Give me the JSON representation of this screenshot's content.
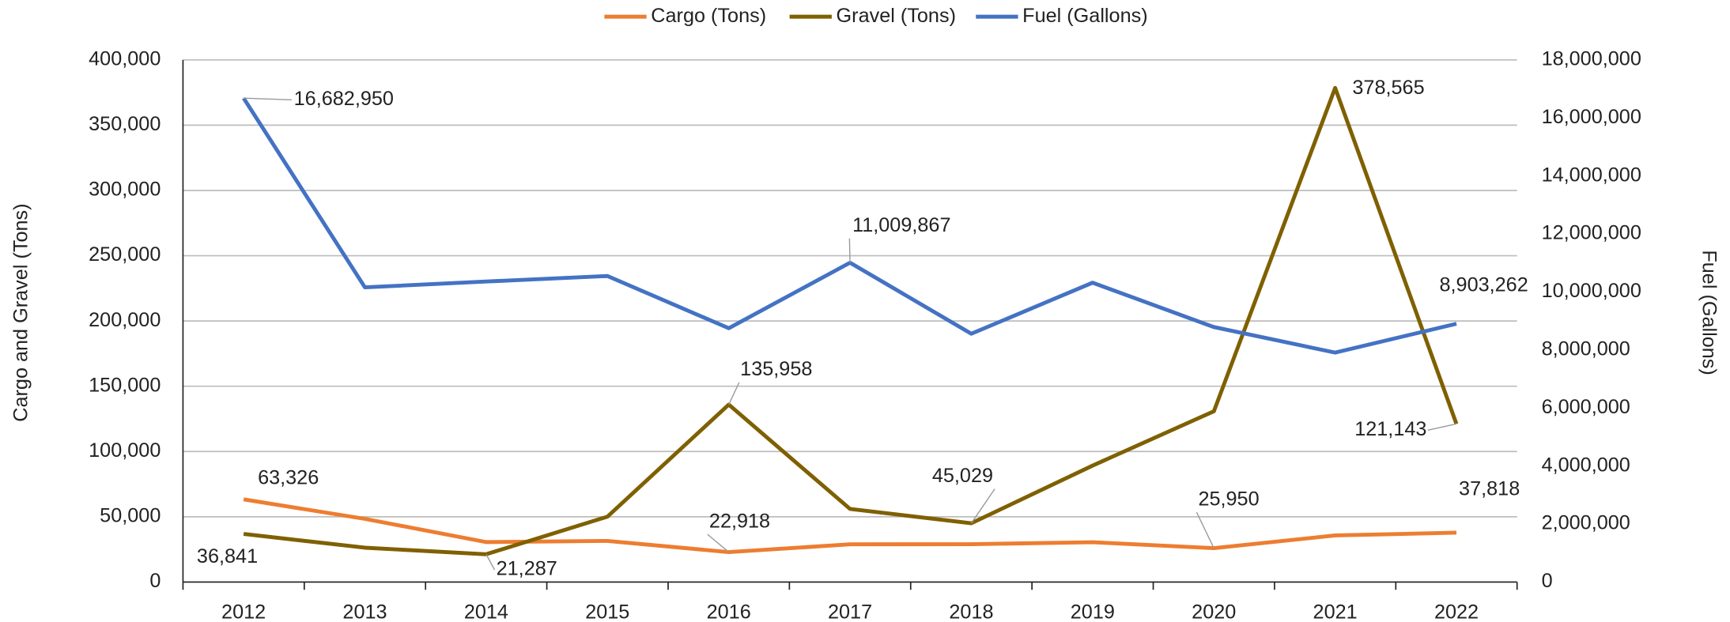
{
  "chart_data": {
    "type": "line",
    "y_label": "Cargo and Gravel (Tons)",
    "y2_label": "Fuel (Gallons)",
    "categories": [
      "2012",
      "2013",
      "2014",
      "2015",
      "2016",
      "2017",
      "2018",
      "2019",
      "2020",
      "2021",
      "2022"
    ],
    "series": [
      {
        "name": "Cargo (Tons)",
        "color": "#ed7d31",
        "values": [
          63326,
          48400,
          30600,
          31500,
          22918,
          28900,
          29000,
          30500,
          25950,
          35700,
          37818
        ],
        "value_labels": [
          "63,326",
          null,
          null,
          null,
          "22,918",
          null,
          null,
          null,
          "25,950",
          null,
          "37,818"
        ]
      },
      {
        "name": "Gravel (Tons)",
        "color": "#7f6000",
        "values": [
          36841,
          26300,
          21287,
          50100,
          135958,
          56000,
          45029,
          89200,
          130800,
          378565,
          121143
        ],
        "value_labels": [
          "36,841",
          null,
          "21,287",
          null,
          "135,958",
          null,
          "45,029",
          null,
          null,
          "378,565",
          "121,143"
        ]
      },
      {
        "name": "Fuel (Gallons)",
        "color": "#4472c4",
        "axis": "y2",
        "values": [
          16682950,
          10160000,
          10360000,
          10550000,
          8750000,
          11009867,
          8560000,
          10320000,
          8790000,
          7910000,
          8903262
        ],
        "value_labels": [
          "16,682,950",
          null,
          null,
          null,
          null,
          "11,009,867",
          null,
          null,
          null,
          null,
          "8,903,262"
        ]
      }
    ],
    "ylim": [
      0,
      400000
    ],
    "yticks": [
      {
        "value": 0,
        "label": "0"
      },
      {
        "value": 50000,
        "label": "50,000"
      },
      {
        "value": 100000,
        "label": "100,000"
      },
      {
        "value": 150000,
        "label": "150,000"
      },
      {
        "value": 200000,
        "label": "200,000"
      },
      {
        "value": 250000,
        "label": "250,000"
      },
      {
        "value": 300000,
        "label": "300,000"
      },
      {
        "value": 350000,
        "label": "350,000"
      },
      {
        "value": 400000,
        "label": "400,000"
      }
    ],
    "y2lim": [
      0,
      18000000
    ],
    "y2ticks": [
      {
        "value": 0,
        "label": "0"
      },
      {
        "value": 2000000,
        "label": "2,000,000"
      },
      {
        "value": 4000000,
        "label": "4,000,000"
      },
      {
        "value": 6000000,
        "label": "6,000,000"
      },
      {
        "value": 8000000,
        "label": "8,000,000"
      },
      {
        "value": 10000000,
        "label": "10,000,000"
      },
      {
        "value": 12000000,
        "label": "12,000,000"
      },
      {
        "value": 14000000,
        "label": "14,000,000"
      },
      {
        "value": 16000000,
        "label": "16,000,000"
      },
      {
        "value": 18000000,
        "label": "18,000,000"
      }
    ],
    "grid": true,
    "legend": "top"
  }
}
